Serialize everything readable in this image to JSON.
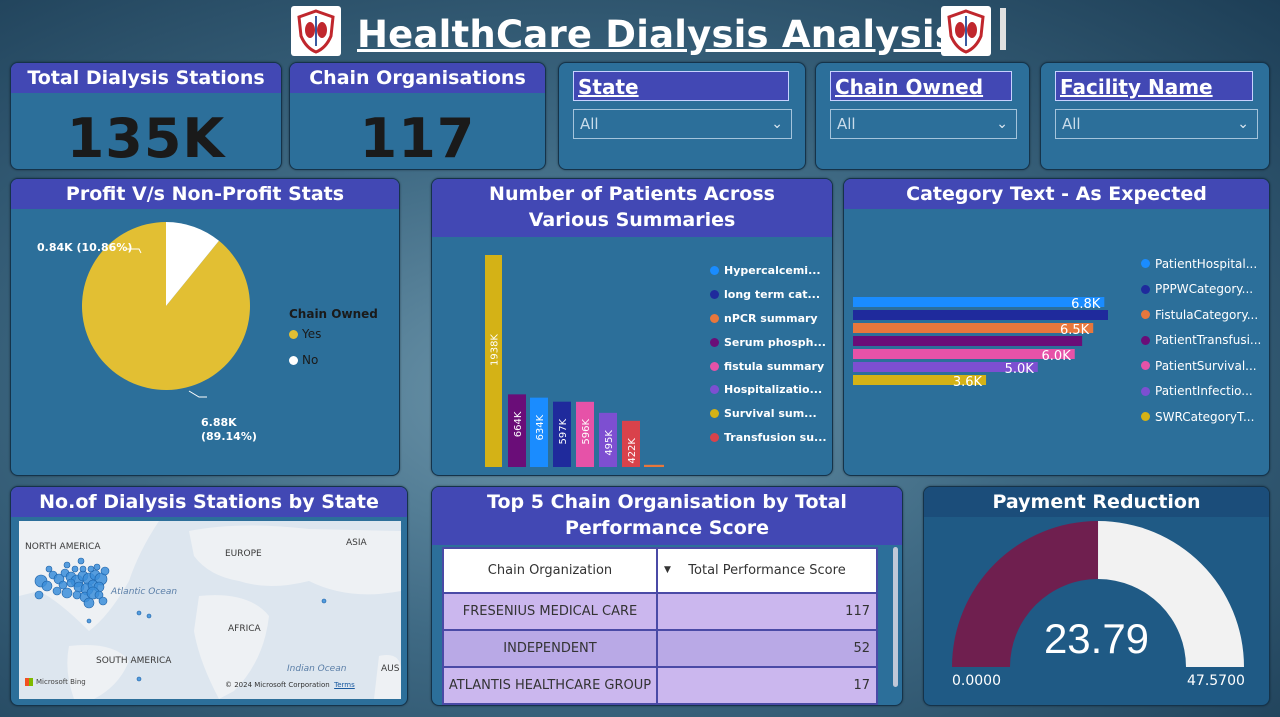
{
  "header": {
    "title": "HealthCare Dialysis Analysis"
  },
  "kpis": [
    {
      "label": "Total Dialysis Stations",
      "value": "135K"
    },
    {
      "label": "Chain Organisations",
      "value": "117"
    }
  ],
  "slicers": [
    {
      "label": "State",
      "value": "All"
    },
    {
      "label": "Chain Owned",
      "value": "All"
    },
    {
      "label": "Facility Name",
      "value": "All"
    }
  ],
  "pie": {
    "title": "Profit V/s Non-Profit Stats",
    "legend_title": "Chain Owned",
    "slices": [
      {
        "name": "Yes",
        "label": "6.88K",
        "pct_label": "(89.14%)",
        "value": 89.14,
        "color": "#e2bf33"
      },
      {
        "name": "No",
        "label": "0.84K (10.86%)",
        "value": 10.86,
        "color": "#ffffff"
      }
    ]
  },
  "chart_data": [
    {
      "type": "bar",
      "title": "Number of Patients Across Various Summaries",
      "categories": [
        "Survival sum...",
        "Serum phosph...",
        "Hypercalcemi...",
        "long term cat...",
        "fistula summary",
        "Hospitalizatio...",
        "Transfusion su...",
        "nPCR summary"
      ],
      "values": [
        1938,
        664,
        634,
        597,
        596,
        495,
        422,
        20
      ],
      "labels": [
        "1938K",
        "664K",
        "634K",
        "597K",
        "596K",
        "495K",
        "422K",
        ""
      ],
      "colors": [
        "#d4b216",
        "#6a0d78",
        "#1a8cff",
        "#1f2a9c",
        "#e652a8",
        "#7d4fd1",
        "#d9424b",
        "#e8773c"
      ],
      "legend": [
        {
          "name": "Hypercalcemi...",
          "color": "#1a8cff"
        },
        {
          "name": "long term cat...",
          "color": "#1f2a9c"
        },
        {
          "name": "nPCR summary",
          "color": "#e8773c"
        },
        {
          "name": "Serum phosph...",
          "color": "#6a0d78"
        },
        {
          "name": "fistula summary",
          "color": "#e652a8"
        },
        {
          "name": "Hospitalizatio...",
          "color": "#7d4fd1"
        },
        {
          "name": "Survival sum...",
          "color": "#d4b216"
        },
        {
          "name": "Transfusion su...",
          "color": "#d9424b"
        }
      ]
    },
    {
      "type": "bar",
      "orientation": "horizontal",
      "title": "Category Text - As Expected",
      "categories": [
        "PatientHospital...",
        "PPPWCategory...",
        "FistulaCategory...",
        "PatientTransfusi...",
        "PatientSurvival...",
        "PatientInfectio...",
        "SWRCategoryT..."
      ],
      "values": [
        6.8,
        6.9,
        6.5,
        6.2,
        6.0,
        5.0,
        3.6
      ],
      "labels": [
        "6.8K",
        "",
        "6.5K",
        "",
        "6.0K",
        "5.0K",
        "3.6K"
      ],
      "colors": [
        "#1a8cff",
        "#1f2a9c",
        "#e8773c",
        "#6a0d78",
        "#e652a8",
        "#7d4fd1",
        "#d4b216"
      ]
    }
  ],
  "map": {
    "title": "No.of Dialysis Stations by State",
    "labels": [
      "NORTH AMERICA",
      "EUROPE",
      "ASIA",
      "AFRICA",
      "SOUTH AMERICA",
      "Atlantic Ocean",
      "Indian Ocean",
      "AUS"
    ],
    "attribution": "© 2024 Microsoft Corporation",
    "terms": "Terms",
    "brand": "Microsoft Bing"
  },
  "table": {
    "title": "Top 5 Chain Organisation by Total Performance Score",
    "columns": [
      "Chain Organization",
      "Total Performance Score"
    ],
    "rows": [
      [
        "FRESENIUS MEDICAL CARE",
        "117"
      ],
      [
        "INDEPENDENT",
        "52"
      ],
      [
        "ATLANTIS HEALTHCARE GROUP",
        "17"
      ]
    ]
  },
  "gauge": {
    "title": "Payment Reduction",
    "value": 23.79,
    "value_label": "23.79",
    "min_label": "0.0000",
    "max_label": "47.5700",
    "min": 0,
    "max": 47.57,
    "fill_color": "#6f1f4f",
    "track_color": "#f2f2f2"
  }
}
